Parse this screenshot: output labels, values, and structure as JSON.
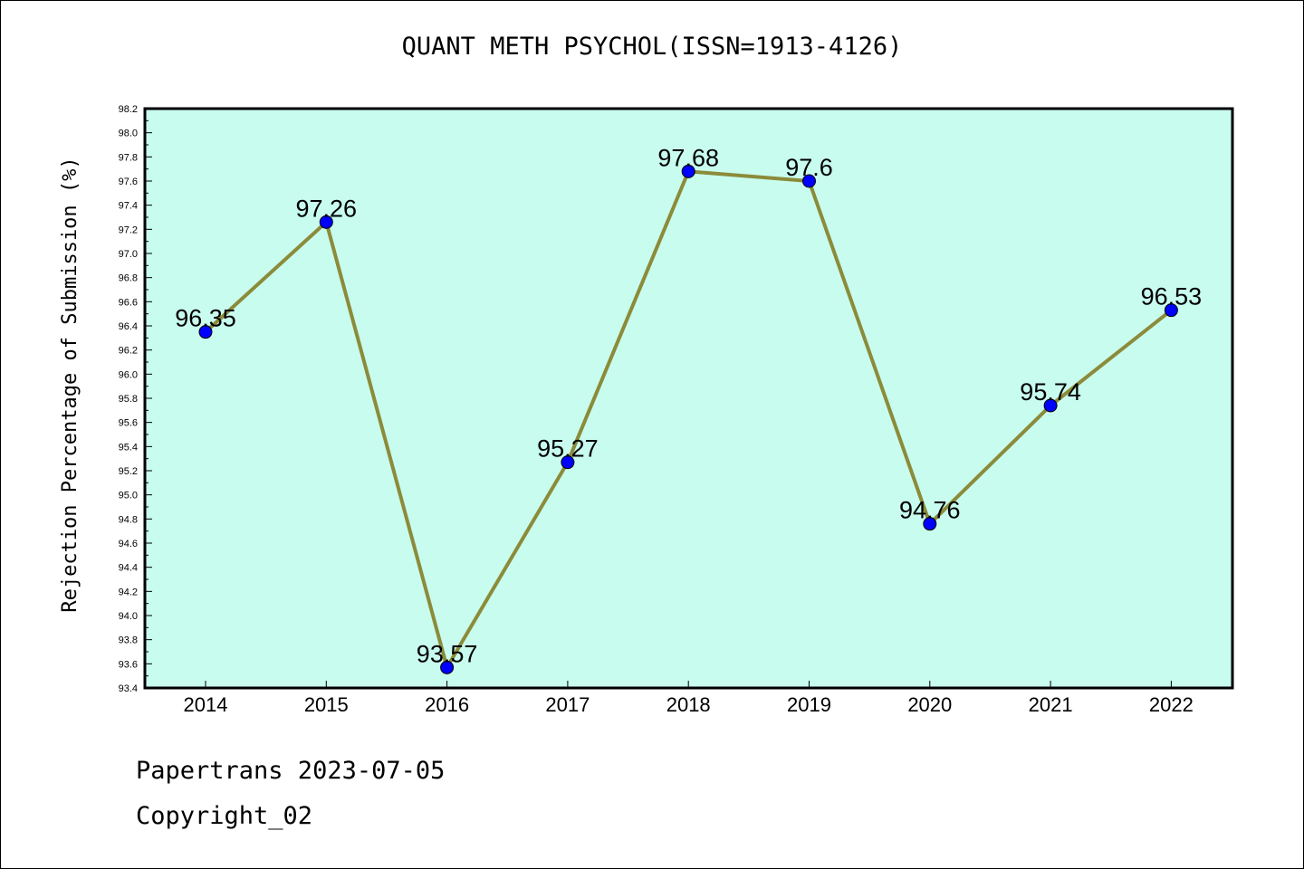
{
  "chart_data": {
    "type": "line",
    "title": "QUANT METH PSYCHOL(ISSN=1913-4126)",
    "xlabel": "",
    "ylabel": "Rejection Percentage of Submission (%)",
    "categories": [
      "2014",
      "2015",
      "2016",
      "2017",
      "2018",
      "2019",
      "2020",
      "2021",
      "2022"
    ],
    "series": [
      {
        "values": [
          96.35,
          97.26,
          93.57,
          95.27,
          97.68,
          97.6,
          94.76,
          95.74,
          96.53
        ],
        "labels": [
          "96.35",
          "97.26",
          "93.57",
          "95.27",
          "97.68",
          "97.6",
          "94.76",
          "95.74",
          "96.53"
        ]
      }
    ],
    "ylim": [
      93.4,
      98.2
    ],
    "yticks": [
      "93.4",
      "93.6",
      "93.8",
      "94.0",
      "94.2",
      "94.4",
      "94.6",
      "94.8",
      "95.0",
      "95.2",
      "95.4",
      "95.6",
      "95.8",
      "96.0",
      "96.2",
      "96.4",
      "96.6",
      "96.8",
      "97.0",
      "97.2",
      "97.4",
      "97.6",
      "97.8",
      "98.0",
      "98.2"
    ],
    "grid": false,
    "colors": {
      "plot_background": "#c8fcee",
      "line": "#8b8b3a",
      "marker": "#0000ff"
    }
  },
  "footer": {
    "line1": "Papertrans 2023-07-05",
    "line2": "Copyright_02"
  }
}
